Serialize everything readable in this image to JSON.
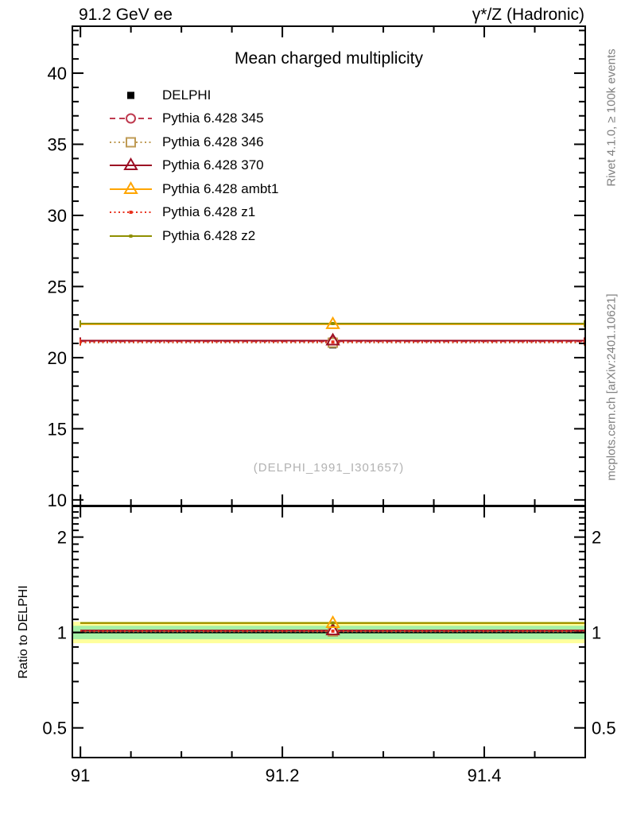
{
  "header": {
    "left_label": "91.2 GeV ee",
    "right_label": "γ*/Z (Hadronic)"
  },
  "side_notes": {
    "rivet": "Rivet 4.1.0, ≥ 100k events",
    "mcplots": "mcplots.cern.ch [arXiv:2401.10621]"
  },
  "watermark": "(DELPHI_1991_I301657)",
  "ratio_axis_label": "Ratio to DELPHI",
  "chart_data": {
    "type": "line",
    "title": "Mean charged multiplicity",
    "x": {
      "lim": [
        90.992,
        91.5
      ],
      "ticks": [
        91,
        91.2,
        91.4
      ],
      "tick_labels": [
        "91",
        "91.2",
        "91.4"
      ],
      "minor_ticks": [
        91.05,
        91.1,
        91.15,
        91.25,
        91.3,
        91.35,
        91.45
      ],
      "point_x": 91.25
    },
    "main_y": {
      "lim": [
        9.6,
        43.3
      ],
      "ticks": [
        10,
        15,
        20,
        25,
        30,
        35,
        40
      ],
      "minor_step": 1
    },
    "ratio_y": {
      "scale": "log",
      "lim": [
        0.403,
        2.5
      ],
      "ticks": [
        0.5,
        1,
        2
      ],
      "tick_labels": [
        "0.5",
        "1",
        "2"
      ],
      "minor_ticks": [
        0.6,
        0.7,
        0.8,
        0.9,
        1.1,
        1.2,
        1.3,
        1.4,
        1.5,
        1.6,
        1.7,
        1.8,
        1.9,
        2.1,
        2.2,
        2.3,
        2.4
      ]
    },
    "reference": {
      "name": "DELPHI",
      "value": 20.9,
      "color": "#000000",
      "marker": "filled-square",
      "band_outer": [
        0.925,
        1.081
      ],
      "band_outer_color": "#ffff9c",
      "band_inner": [
        0.952,
        1.05
      ],
      "band_inner_color": "#a6f0a6"
    },
    "series": [
      {
        "name": "Pythia 6.428 345",
        "value": 21.15,
        "ratio": 1.012,
        "color": "#bf3b50",
        "line": "dashed",
        "marker": "open-circle"
      },
      {
        "name": "Pythia 6.428 346",
        "value": 21.05,
        "ratio": 1.007,
        "color": "#bf9b55",
        "line": "dotted",
        "marker": "open-square"
      },
      {
        "name": "Pythia 6.428 370",
        "value": 21.2,
        "ratio": 1.014,
        "color": "#9c0e24",
        "line": "solid",
        "marker": "open-triangle"
      },
      {
        "name": "Pythia 6.428 ambt1",
        "value": 22.35,
        "ratio": 1.069,
        "color": "#ffa500",
        "line": "solid",
        "marker": "open-triangle"
      },
      {
        "name": "Pythia 6.428 z1",
        "value": 21.1,
        "ratio": 1.01,
        "color": "#e8321e",
        "line": "dotted",
        "marker": "small-dot"
      },
      {
        "name": "Pythia 6.428 z2",
        "value": 22.4,
        "ratio": 1.072,
        "color": "#8f8f00",
        "line": "solid",
        "marker": "small-dot"
      }
    ]
  }
}
